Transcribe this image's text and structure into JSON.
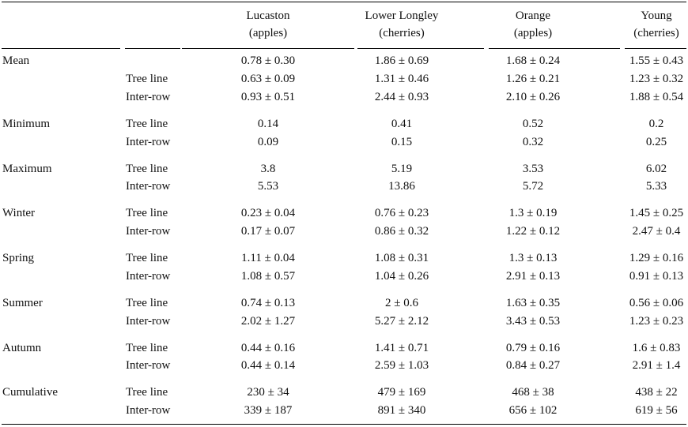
{
  "table": {
    "columns": [
      {
        "site": "Lucaston",
        "crop": "(apples)"
      },
      {
        "site": "Lower Longley",
        "crop": "(cherries)"
      },
      {
        "site": "Orange",
        "crop": "(apples)"
      },
      {
        "site": "Young",
        "crop": "(cherries)"
      }
    ],
    "sections": [
      {
        "label": "Mean",
        "rows": [
          {
            "sub": "",
            "values": [
              "0.78 ± 0.30",
              "1.86 ± 0.69",
              "1.68 ± 0.24",
              "1.55 ± 0.43"
            ]
          },
          {
            "sub": "Tree line",
            "values": [
              "0.63 ± 0.09",
              "1.31 ± 0.46",
              "1.26 ± 0.21",
              "1.23 ± 0.32"
            ]
          },
          {
            "sub": "Inter-row",
            "values": [
              "0.93 ± 0.51",
              "2.44 ± 0.93",
              "2.10 ± 0.26",
              "1.88 ± 0.54"
            ]
          }
        ]
      },
      {
        "label": "Minimum",
        "rows": [
          {
            "sub": "Tree line",
            "values": [
              "0.14",
              "0.41",
              "0.52",
              "0.2"
            ]
          },
          {
            "sub": "Inter-row",
            "values": [
              "0.09",
              "0.15",
              "0.32",
              "0.25"
            ]
          }
        ]
      },
      {
        "label": "Maximum",
        "rows": [
          {
            "sub": "Tree line",
            "values": [
              "3.8",
              "5.19",
              "3.53",
              "6.02"
            ]
          },
          {
            "sub": "Inter-row",
            "values": [
              "5.53",
              "13.86",
              "5.72",
              "5.33"
            ]
          }
        ]
      },
      {
        "label": "Winter",
        "rows": [
          {
            "sub": "Tree line",
            "values": [
              "0.23 ± 0.04",
              "0.76 ± 0.23",
              "1.3 ± 0.19",
              "1.45 ± 0.25"
            ]
          },
          {
            "sub": "Inter-row",
            "values": [
              "0.17 ± 0.07",
              "0.86 ± 0.32",
              "1.22 ± 0.12",
              "2.47 ± 0.4"
            ]
          }
        ]
      },
      {
        "label": "Spring",
        "rows": [
          {
            "sub": "Tree line",
            "values": [
              "1.11 ± 0.04",
              "1.08 ± 0.31",
              "1.3 ± 0.13",
              "1.29 ± 0.16"
            ]
          },
          {
            "sub": "Inter-row",
            "values": [
              "1.08 ± 0.57",
              "1.04 ± 0.26",
              "2.91 ± 0.13",
              "0.91 ± 0.13"
            ]
          }
        ]
      },
      {
        "label": "Summer",
        "rows": [
          {
            "sub": "Tree line",
            "values": [
              "0.74 ± 0.13",
              "2 ± 0.6",
              "1.63 ± 0.35",
              "0.56 ± 0.06"
            ]
          },
          {
            "sub": "Inter-row",
            "values": [
              "2.02 ± 1.27",
              "5.27 ± 2.12",
              "3.43 ± 0.53",
              "1.23 ± 0.23"
            ]
          }
        ]
      },
      {
        "label": "Autumn",
        "rows": [
          {
            "sub": "Tree line",
            "values": [
              "0.44 ± 0.16",
              "1.41 ± 0.71",
              "0.79 ± 0.16",
              "1.6 ± 0.83"
            ]
          },
          {
            "sub": "Inter-row",
            "values": [
              "0.44 ± 0.14",
              "2.59 ± 1.03",
              "0.84 ± 0.27",
              "2.91 ± 1.4"
            ]
          }
        ]
      },
      {
        "label": "Cumulative",
        "rows": [
          {
            "sub": "Tree line",
            "values": [
              "230 ± 34",
              "479 ± 169",
              "468 ± 38",
              "438 ± 22"
            ]
          },
          {
            "sub": "Inter-row",
            "values": [
              "339 ± 187",
              "891 ± 340",
              "656 ± 102",
              "619 ± 56"
            ]
          }
        ]
      }
    ]
  }
}
